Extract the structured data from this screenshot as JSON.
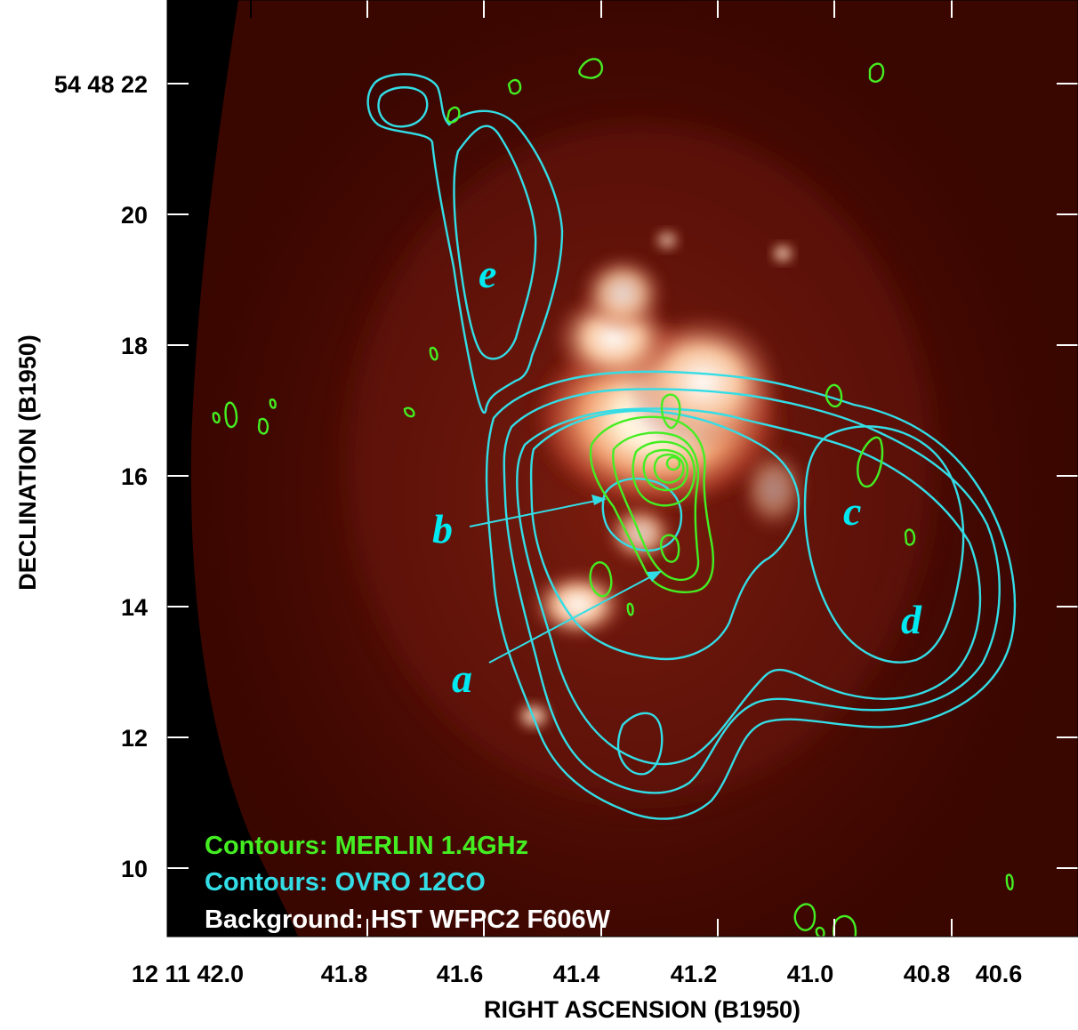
{
  "axes": {
    "x_title": "RIGHT ASCENSION (B1950)",
    "y_title": "DECLINATION (B1950)",
    "x_ticks": [
      "12 11 42.0",
      "41.8",
      "41.6",
      "41.4",
      "41.2",
      "41.0",
      "40.8",
      "40.6"
    ],
    "y_ticks": [
      "54 48 22",
      "20",
      "18",
      "16",
      "14",
      "12",
      "10"
    ]
  },
  "region_labels": [
    "e",
    "b",
    "a",
    "c",
    "d"
  ],
  "legend": {
    "merlin": "Contours: MERLIN 1.4GHz",
    "ovro": "Contours: OVRO 12CO",
    "background": "Background: HST WFPC2 F606W"
  },
  "colors": {
    "merlin_contours": "#44ee22",
    "ovro_contours": "#33dde6",
    "background_dark": "#3a0600",
    "background_bright": "#fff4dc"
  }
}
